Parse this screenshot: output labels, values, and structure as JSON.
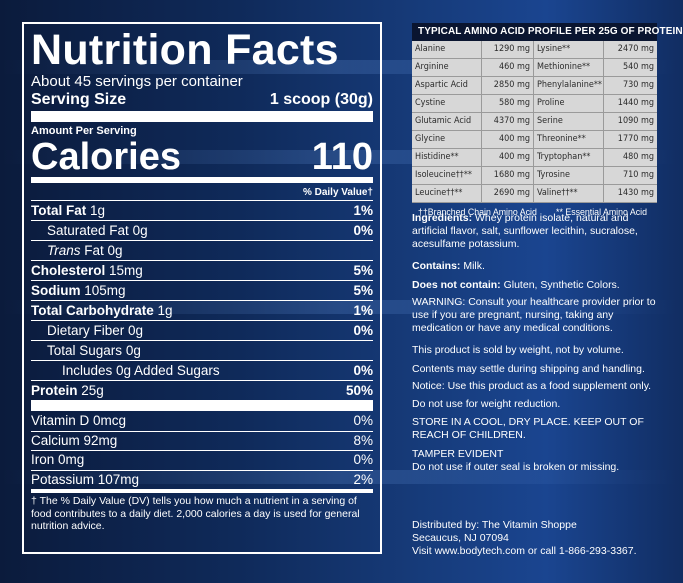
{
  "nutrition": {
    "title": "Nutrition Facts",
    "servings_per_container": "About 45 servings per container",
    "serving_size_label": "Serving Size",
    "serving_size_value": "1 scoop (30g)",
    "amount_per_serving": "Amount Per Serving",
    "calories_label": "Calories",
    "calories_value": "110",
    "daily_value_header": "% Daily Value†",
    "nutrients": [
      {
        "label": "Total Fat",
        "amount": "1g",
        "dv": "1%"
      },
      {
        "label": "Saturated Fat",
        "amount": "0g",
        "dv": "0%"
      },
      {
        "label": "Trans",
        "amount": "Fat 0g",
        "dv": ""
      },
      {
        "label": "Cholesterol",
        "amount": "15mg",
        "dv": "5%"
      },
      {
        "label": "Sodium",
        "amount": "105mg",
        "dv": "5%"
      },
      {
        "label": "Total Carbohydrate",
        "amount": "1g",
        "dv": "1%"
      },
      {
        "label": "Dietary Fiber",
        "amount": "0g",
        "dv": "0%"
      },
      {
        "label": "Total Sugars",
        "amount": "0g",
        "dv": ""
      },
      {
        "label": "Includes 0g Added Sugars",
        "amount": "",
        "dv": "0%"
      },
      {
        "label": "Protein",
        "amount": "25g",
        "dv": "50%"
      }
    ],
    "vitamins": [
      {
        "label": "Vitamin D 0mcg",
        "dv": "0%"
      },
      {
        "label": "Calcium 92mg",
        "dv": "8%"
      },
      {
        "label": "Iron 0mg",
        "dv": "0%"
      },
      {
        "label": "Potassium 107mg",
        "dv": "2%"
      }
    ],
    "footnote": "† The % Daily Value (DV) tells you how much a nutrient in a serving of food contributes to a daily diet. 2,000 calories a day is used for general nutrition advice."
  },
  "amino": {
    "title": "TYPICAL AMINO ACID PROFILE PER 25G OF PROTEIN",
    "rows": [
      [
        "Alanine",
        "1290 mg",
        "Lysine**",
        "2470 mg"
      ],
      [
        "Arginine",
        "460 mg",
        "Methionine**",
        "540 mg"
      ],
      [
        "Aspartic Acid",
        "2850 mg",
        "Phenylalanine**",
        "730 mg"
      ],
      [
        "Cystine",
        "580 mg",
        "Proline",
        "1440 mg"
      ],
      [
        "Glutamic Acid",
        "4370 mg",
        "Serine",
        "1090 mg"
      ],
      [
        "Glycine",
        "400 mg",
        "Threonine**",
        "1770 mg"
      ],
      [
        "Histidine**",
        "400 mg",
        "Tryptophan**",
        "480 mg"
      ],
      [
        "Isoleucine††**",
        "1680 mg",
        "Tyrosine",
        "710 mg"
      ],
      [
        "Leucine††**",
        "2690 mg",
        "Valine††**",
        "1430 mg"
      ]
    ],
    "legend_bcaa": "††Branched Chain Amino Acid",
    "legend_essential": "** Essential Amino Acid"
  },
  "info": {
    "ingredients_label": "Ingredients:",
    "ingredients_text": "Whey protein isolate, natural and artificial flavor, salt, sunflower lecithin, sucralose, acesulfame potassium.",
    "contains_label": "Contains:",
    "contains_text": "Milk.",
    "not_contain_label": "Does not contain:",
    "not_contain_text": "Gluten, Synthetic Colors.",
    "warning": "WARNING: Consult your healthcare provider prior to use if you are pregnant, nursing, taking any medication or have any medical conditions.",
    "sold_by_weight": "This product is sold by weight, not by volume.",
    "settle": "Contents may settle during shipping and handling.",
    "notice": "Notice: Use this product as a food supplement only.",
    "weight_reduction": "Do not use for weight reduction.",
    "store": "STORE IN A COOL, DRY PLACE. KEEP OUT OF REACH OF CHILDREN.",
    "tamper_title": "TAMPER EVIDENT",
    "tamper_text": "Do not use if outer seal is broken or missing.",
    "distributed_by": "Distributed by: The Vitamin Shoppe",
    "address": "Secaucus, NJ 07094",
    "visit": "Visit www.bodytech.com or call 1-866-293-3367."
  }
}
